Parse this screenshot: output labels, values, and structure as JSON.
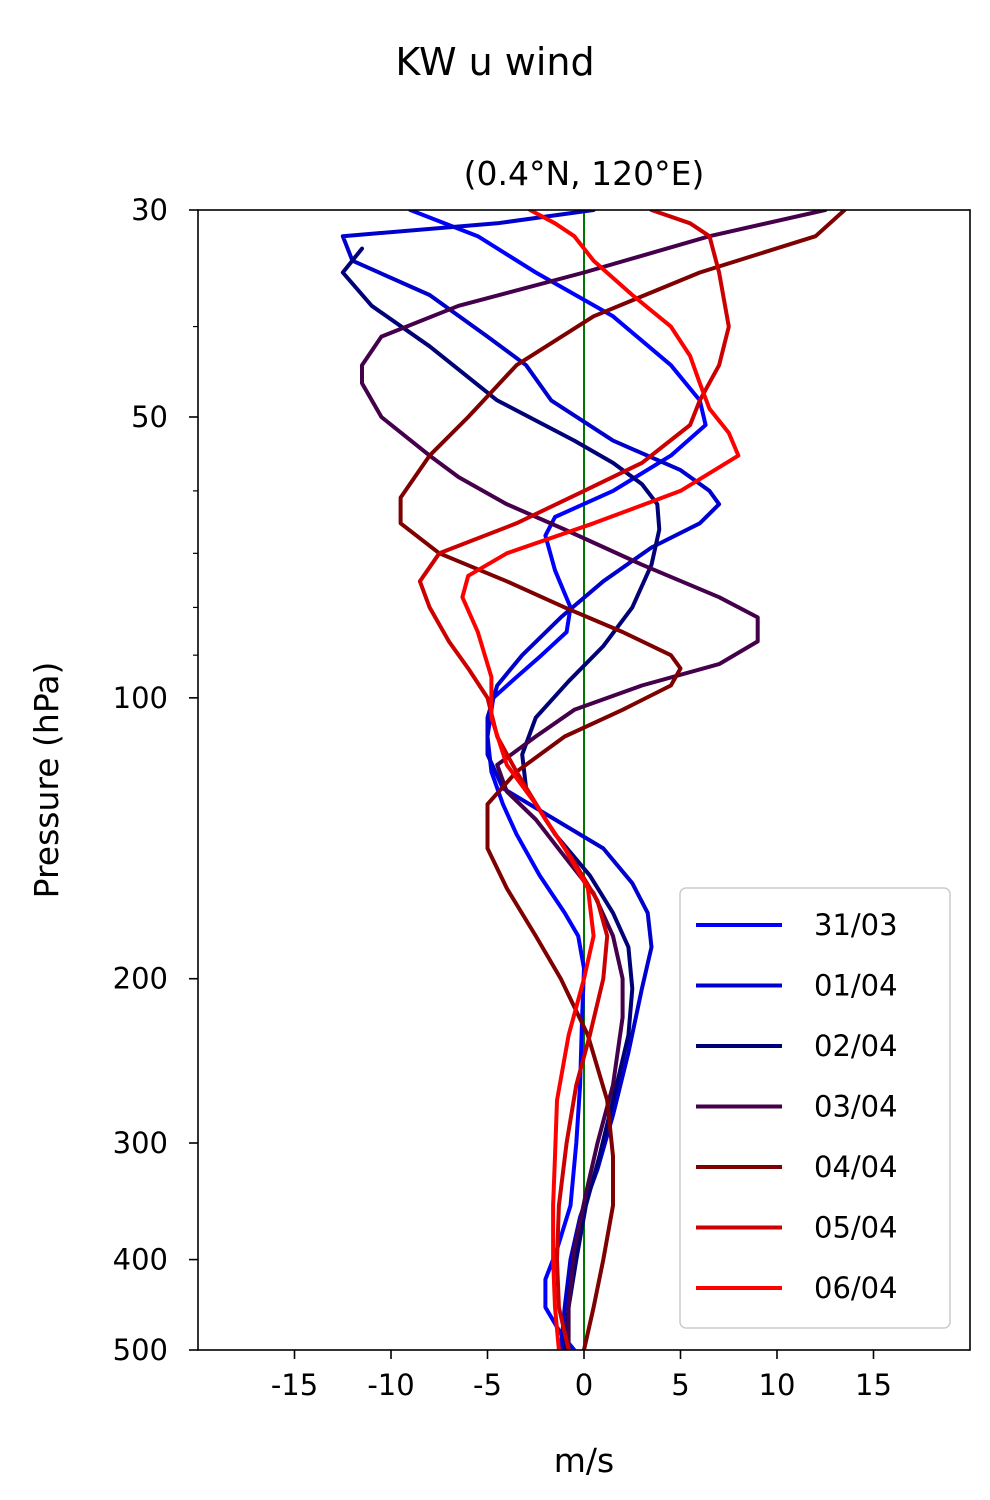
{
  "chart_data": {
    "type": "line",
    "title": "KW u wind",
    "subtitle": "(0.4°N, 120°E)",
    "xlabel": "m/s",
    "ylabel": "Pressure (hPa)",
    "xlim": [
      -20,
      20
    ],
    "ylim": [
      500,
      30
    ],
    "yscale": "log",
    "grid": false,
    "legend_position": "bottom-right",
    "xticks": [
      -15,
      -10,
      -5,
      0,
      5,
      10,
      15
    ],
    "xtick_labels": [
      "-15",
      "-10",
      "-5",
      "0",
      "5",
      "10",
      "15"
    ],
    "yticks": [
      30,
      50,
      100,
      200,
      300,
      400,
      500
    ],
    "ytick_labels": [
      "30",
      "50",
      "100",
      "200",
      "300",
      "400",
      "500"
    ],
    "yminor_ticks": [
      40,
      60,
      70,
      80,
      90
    ],
    "reference_line": {
      "x": 0,
      "color": "#007700"
    },
    "series": [
      {
        "name": "31/03",
        "color": "#0000ff",
        "points": [
          [
            -9,
            30
          ],
          [
            -5.5,
            32
          ],
          [
            -2.5,
            35
          ],
          [
            1.5,
            39
          ],
          [
            4.5,
            44
          ],
          [
            6,
            48
          ],
          [
            6.3,
            51
          ],
          [
            4.5,
            55
          ],
          [
            1.5,
            60
          ],
          [
            -1.5,
            64
          ],
          [
            -2,
            67
          ],
          [
            -1.5,
            73
          ],
          [
            -0.7,
            80
          ],
          [
            -0.9,
            85
          ],
          [
            -2.2,
            90
          ],
          [
            -3.5,
            95
          ],
          [
            -4.7,
            100
          ],
          [
            -5,
            110
          ],
          [
            -4.8,
            120
          ],
          [
            -4.2,
            130
          ],
          [
            -3.5,
            140
          ],
          [
            -2.3,
            155
          ],
          [
            -1,
            170
          ],
          [
            -0.3,
            180
          ],
          [
            0,
            195
          ],
          [
            -0.1,
            220
          ],
          [
            -0.2,
            260
          ],
          [
            -0.4,
            300
          ],
          [
            -0.7,
            350
          ],
          [
            -1.4,
            390
          ],
          [
            -2,
            420
          ],
          [
            -2,
            450
          ],
          [
            -1.2,
            480
          ],
          [
            -0.5,
            500
          ]
        ]
      },
      {
        "name": "01/04",
        "color": "#0000cc",
        "points": [
          [
            0.5,
            30
          ],
          [
            -4.5,
            31
          ],
          [
            -12.5,
            32
          ],
          [
            -12,
            34
          ],
          [
            -8,
            37
          ],
          [
            -5,
            41
          ],
          [
            -3,
            44
          ],
          [
            -1.7,
            48
          ],
          [
            1.5,
            53
          ],
          [
            5,
            57
          ],
          [
            6.5,
            60
          ],
          [
            7,
            62
          ],
          [
            6,
            65
          ],
          [
            3.5,
            69
          ],
          [
            1,
            75
          ],
          [
            -1.2,
            82
          ],
          [
            -3.2,
            90
          ],
          [
            -4.5,
            97
          ],
          [
            -5,
            105
          ],
          [
            -5,
            115
          ],
          [
            -4.2,
            125
          ],
          [
            -1.5,
            135
          ],
          [
            1,
            145
          ],
          [
            2.5,
            158
          ],
          [
            3.3,
            170
          ],
          [
            3.5,
            185
          ],
          [
            3,
            205
          ],
          [
            2.3,
            240
          ],
          [
            1.5,
            280
          ],
          [
            0.7,
            320
          ],
          [
            -0.2,
            360
          ],
          [
            -0.7,
            400
          ],
          [
            -1,
            450
          ],
          [
            -1.2,
            500
          ]
        ]
      },
      {
        "name": "02/04",
        "color": "#000077",
        "points": [
          [
            -11.5,
            33
          ],
          [
            -12.5,
            35
          ],
          [
            -11,
            38
          ],
          [
            -8,
            42
          ],
          [
            -4.5,
            48
          ],
          [
            -0.5,
            53
          ],
          [
            1.5,
            56
          ],
          [
            3,
            59
          ],
          [
            3.8,
            62
          ],
          [
            3.9,
            66
          ],
          [
            3.5,
            72
          ],
          [
            2.5,
            80
          ],
          [
            1,
            88
          ],
          [
            -0.8,
            96
          ],
          [
            -2.5,
            105
          ],
          [
            -3.2,
            115
          ],
          [
            -3,
            125
          ],
          [
            -1.5,
            140
          ],
          [
            0.3,
            155
          ],
          [
            1.5,
            170
          ],
          [
            2.3,
            185
          ],
          [
            2.5,
            205
          ],
          [
            2.3,
            230
          ],
          [
            1.5,
            270
          ],
          [
            0.8,
            310
          ],
          [
            0.1,
            350
          ],
          [
            -0.4,
            400
          ],
          [
            -0.8,
            450
          ],
          [
            -1,
            500
          ]
        ]
      },
      {
        "name": "03/04",
        "color": "#44004a",
        "points": [
          [
            12.5,
            30
          ],
          [
            6.5,
            32
          ],
          [
            0,
            35
          ],
          [
            -6.5,
            38
          ],
          [
            -10.5,
            41
          ],
          [
            -11.5,
            44
          ],
          [
            -11.5,
            46
          ],
          [
            -10.5,
            50
          ],
          [
            -8,
            55
          ],
          [
            -6.5,
            58
          ],
          [
            -4,
            62
          ],
          [
            -1,
            66
          ],
          [
            3,
            72
          ],
          [
            7,
            78
          ],
          [
            9,
            82
          ],
          [
            9,
            87
          ],
          [
            7,
            92
          ],
          [
            3,
            97
          ],
          [
            -0.5,
            103
          ],
          [
            -2.5,
            110
          ],
          [
            -4.5,
            118
          ],
          [
            -4,
            126
          ],
          [
            -2.5,
            135
          ],
          [
            -1,
            148
          ],
          [
            0.5,
            162
          ],
          [
            1.5,
            180
          ],
          [
            2,
            200
          ],
          [
            2,
            220
          ],
          [
            1.5,
            260
          ],
          [
            0.7,
            300
          ],
          [
            0.1,
            340
          ],
          [
            -0.5,
            390
          ],
          [
            -0.8,
            450
          ],
          [
            -0.8,
            500
          ]
        ]
      },
      {
        "name": "04/04",
        "color": "#7f0000",
        "points": [
          [
            13.5,
            30
          ],
          [
            12,
            32
          ],
          [
            6,
            35
          ],
          [
            0.5,
            39
          ],
          [
            -3.5,
            44
          ],
          [
            -6,
            50
          ],
          [
            -8,
            55
          ],
          [
            -9.5,
            61
          ],
          [
            -9.5,
            65
          ],
          [
            -7.5,
            70
          ],
          [
            -4,
            75
          ],
          [
            -1,
            80
          ],
          [
            2,
            85
          ],
          [
            4.5,
            90
          ],
          [
            5,
            93
          ],
          [
            4.5,
            97
          ],
          [
            2,
            103
          ],
          [
            -1,
            110
          ],
          [
            -3.5,
            120
          ],
          [
            -5,
            130
          ],
          [
            -5,
            145
          ],
          [
            -4,
            160
          ],
          [
            -2.5,
            180
          ],
          [
            -1.2,
            200
          ],
          [
            0.2,
            230
          ],
          [
            1.2,
            270
          ],
          [
            1.5,
            310
          ],
          [
            1.5,
            350
          ],
          [
            1,
            400
          ],
          [
            0.5,
            450
          ],
          [
            0,
            500
          ]
        ]
      },
      {
        "name": "05/04",
        "color": "#cc0000",
        "points": [
          [
            3.5,
            30
          ],
          [
            5.5,
            31
          ],
          [
            6.5,
            32
          ],
          [
            7,
            35
          ],
          [
            7.5,
            40
          ],
          [
            7,
            44
          ],
          [
            6,
            48
          ],
          [
            5.5,
            51
          ],
          [
            3,
            56
          ],
          [
            0,
            60
          ],
          [
            -3.5,
            65
          ],
          [
            -7.5,
            70
          ],
          [
            -8.5,
            75
          ],
          [
            -8,
            80
          ],
          [
            -7,
            87
          ],
          [
            -6,
            93
          ],
          [
            -5,
            100
          ],
          [
            -4.5,
            110
          ],
          [
            -3.5,
            120
          ],
          [
            -2,
            135
          ],
          [
            -0.5,
            150
          ],
          [
            0.7,
            165
          ],
          [
            1.2,
            180
          ],
          [
            1,
            200
          ],
          [
            0.3,
            230
          ],
          [
            -0.4,
            260
          ],
          [
            -0.9,
            300
          ],
          [
            -1.3,
            350
          ],
          [
            -1.4,
            400
          ],
          [
            -1.3,
            450
          ],
          [
            -0.8,
            500
          ]
        ]
      },
      {
        "name": "06/04",
        "color": "#ff0000",
        "points": [
          [
            -2.8,
            30
          ],
          [
            -1.5,
            31
          ],
          [
            -0.5,
            32
          ],
          [
            0.5,
            34
          ],
          [
            2.5,
            37
          ],
          [
            4.5,
            40
          ],
          [
            5.5,
            43
          ],
          [
            6,
            46
          ],
          [
            6.5,
            49
          ],
          [
            7.5,
            52
          ],
          [
            8,
            55
          ],
          [
            5,
            60
          ],
          [
            0.5,
            65
          ],
          [
            -4,
            70
          ],
          [
            -6,
            74
          ],
          [
            -6.3,
            78
          ],
          [
            -5.5,
            85
          ],
          [
            -4.8,
            95
          ],
          [
            -4.8,
            105
          ],
          [
            -4,
            118
          ],
          [
            -2.5,
            130
          ],
          [
            -1,
            145
          ],
          [
            0.2,
            160
          ],
          [
            0.5,
            180
          ],
          [
            0,
            200
          ],
          [
            -0.8,
            230
          ],
          [
            -1.4,
            270
          ],
          [
            -1.5,
            310
          ],
          [
            -1.6,
            350
          ],
          [
            -1.6,
            400
          ],
          [
            -1.5,
            450
          ],
          [
            -1.3,
            500
          ]
        ]
      }
    ]
  }
}
